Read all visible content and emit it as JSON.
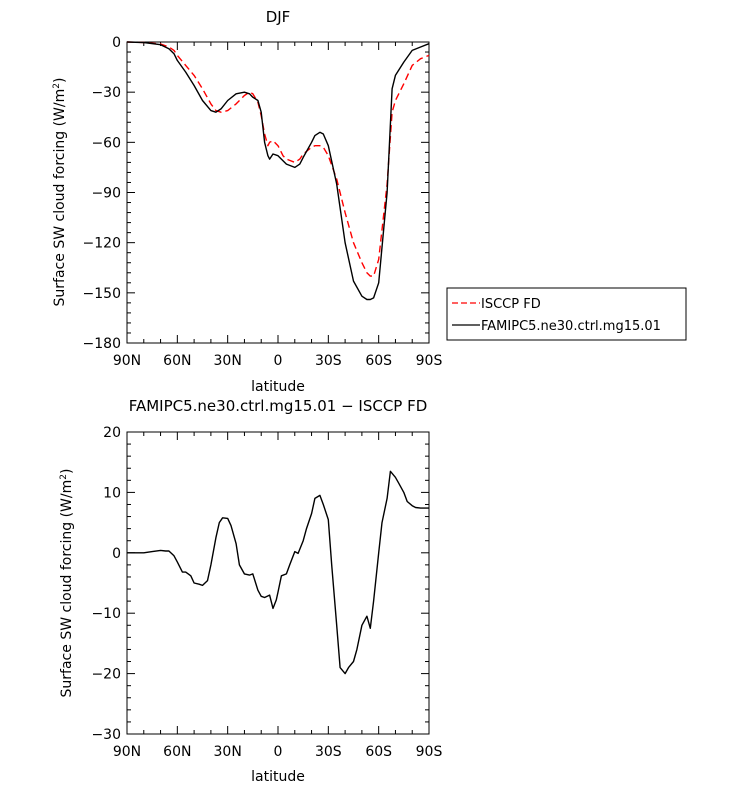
{
  "chart_data": [
    {
      "type": "line",
      "title": "DJF",
      "xlabel": "latitude",
      "ylabel": "Surface SW cloud forcing (W/m²)",
      "xlim": [
        -90,
        90
      ],
      "ylim": [
        -180,
        0
      ],
      "xticks": [
        -90,
        -60,
        -30,
        0,
        30,
        60,
        90
      ],
      "xticklabels": [
        "90N",
        "60N",
        "30N",
        "0",
        "30S",
        "60S",
        "90S"
      ],
      "yticks": [
        0,
        -30,
        -60,
        -90,
        -120,
        -150,
        -180
      ],
      "legend_position": "outside-right",
      "series": [
        {
          "name": "ISCCP FD",
          "color": "#ff0000",
          "style": "dashed",
          "x": [
            -90,
            -80,
            -70,
            -65,
            -62,
            -60,
            -55,
            -50,
            -45,
            -40,
            -37,
            -34,
            -30,
            -25,
            -20,
            -17,
            -15,
            -12,
            -10,
            -8,
            -6,
            -5,
            -3,
            0,
            3,
            5,
            10,
            13,
            15,
            20,
            22,
            25,
            27,
            30,
            35,
            40,
            45,
            50,
            53,
            55,
            57,
            60,
            65,
            68,
            70,
            75,
            80,
            85,
            90
          ],
          "y": [
            0,
            -0.3,
            -1.2,
            -3,
            -5,
            -8,
            -14,
            -20,
            -28,
            -37,
            -41,
            -42,
            -41,
            -37,
            -32,
            -30,
            -31,
            -36,
            -44,
            -55,
            -62,
            -60,
            -59,
            -62,
            -68,
            -70,
            -72,
            -70,
            -67,
            -63,
            -62,
            -62,
            -63,
            -68,
            -82,
            -102,
            -120,
            -132,
            -138,
            -140,
            -140,
            -130,
            -85,
            -42,
            -35,
            -25,
            -14,
            -10,
            -8
          ]
        },
        {
          "name": "FAMIPC5.ne30.ctrl.mg15.01",
          "color": "#000000",
          "style": "solid",
          "x": [
            -90,
            -80,
            -70,
            -65,
            -62,
            -60,
            -55,
            -50,
            -45,
            -40,
            -37,
            -34,
            -30,
            -25,
            -20,
            -17,
            -15,
            -12,
            -10,
            -8,
            -6,
            -5,
            -3,
            0,
            3,
            5,
            10,
            13,
            15,
            20,
            22,
            25,
            27,
            30,
            35,
            40,
            45,
            50,
            53,
            55,
            57,
            60,
            65,
            68,
            70,
            75,
            80,
            85,
            90
          ],
          "y": [
            0,
            -0.3,
            -1.6,
            -4,
            -7,
            -11,
            -18,
            -26,
            -35,
            -41,
            -42,
            -40,
            -35,
            -31,
            -30,
            -31,
            -33,
            -35,
            -42,
            -60,
            -68,
            -70,
            -67,
            -68,
            -71,
            -73,
            -75,
            -73,
            -69,
            -60,
            -56,
            -54,
            -55,
            -62,
            -85,
            -120,
            -143,
            -152,
            -154,
            -154,
            -153,
            -144,
            -90,
            -28,
            -20,
            -12,
            -5,
            -3,
            -1
          ]
        }
      ]
    },
    {
      "type": "line",
      "title": "FAMIPC5.ne30.ctrl.mg15.01 − ISCCP FD",
      "xlabel": "latitude",
      "ylabel": "Surface SW cloud forcing (W/m²)",
      "xlim": [
        -90,
        90
      ],
      "ylim": [
        -30,
        20
      ],
      "xticks": [
        -90,
        -60,
        -30,
        0,
        30,
        60,
        90
      ],
      "xticklabels": [
        "90N",
        "60N",
        "30N",
        "0",
        "30S",
        "60S",
        "90S"
      ],
      "yticks": [
        20,
        10,
        0,
        -10,
        -20,
        -30
      ],
      "series": [
        {
          "color": "#000000",
          "style": "solid",
          "x": [
            -90,
            -80,
            -75,
            -70,
            -67,
            -65,
            -62,
            -60,
            -57,
            -55,
            -52,
            -50,
            -47,
            -45,
            -42,
            -40,
            -37,
            -35,
            -33,
            -30,
            -28,
            -25,
            -23,
            -20,
            -17,
            -15,
            -12,
            -10,
            -8,
            -5,
            -3,
            -1,
            0,
            2,
            5,
            7,
            10,
            12,
            15,
            17,
            20,
            22,
            25,
            27,
            30,
            32,
            35,
            37,
            40,
            42,
            45,
            47,
            50,
            53,
            55,
            57,
            60,
            62,
            65,
            67,
            70,
            72,
            75,
            77,
            80,
            82,
            85,
            87,
            90
          ],
          "y": [
            0,
            0,
            0.2,
            0.4,
            0.3,
            0.3,
            -0.5,
            -1.5,
            -3.2,
            -3.2,
            -3.8,
            -5,
            -5.2,
            -5.4,
            -4.6,
            -2,
            2.5,
            5,
            5.8,
            5.7,
            4.5,
            1.5,
            -2,
            -3.5,
            -3.7,
            -3.5,
            -6.2,
            -7.2,
            -7.4,
            -7,
            -9.2,
            -7.8,
            -6.5,
            -3.8,
            -3.5,
            -2,
            0.2,
            -0.1,
            2,
            4,
            6.5,
            9,
            9.5,
            8,
            5.5,
            -2,
            -12,
            -19,
            -20,
            -19,
            -18,
            -16,
            -12,
            -10.5,
            -12.5,
            -8,
            0,
            5,
            9,
            13.5,
            12.5,
            11.5,
            10,
            8.5,
            7.8,
            7.5,
            7.4,
            7.4,
            7.4
          ]
        }
      ]
    }
  ]
}
